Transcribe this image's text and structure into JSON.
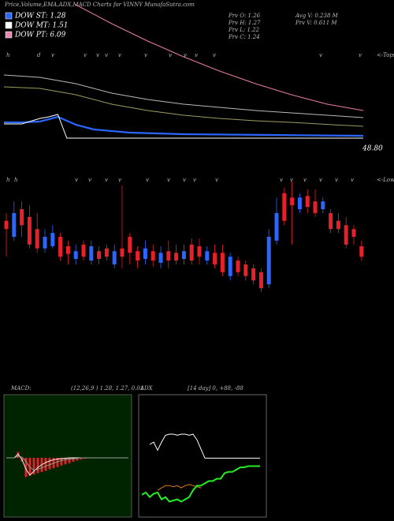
{
  "title": "Price,Volume,EMA,ADX,MACD Charts for VINNY MunafaSutra.com",
  "chart_data": [
    {
      "type": "line",
      "legend": [
        {
          "label": "DOW ST: 1.28",
          "color": "#2a66ff"
        },
        {
          "label": "DOW MT: 1.51",
          "color": "#ffffff"
        },
        {
          "label": "DOW PT: 6.09",
          "color": "#e88ab0"
        }
      ],
      "stats": [
        "Prv  O: 1.26",
        "Prv  H: 1.27",
        "Prv  L: 1.22",
        "Prv  C: 1.24",
        "Avg V: 0.238  M",
        "Prv  V: 0.611 M"
      ],
      "price_label": "48.80",
      "markers": [
        "h",
        "d",
        "v",
        "v",
        "v",
        "v",
        "v",
        "v",
        "v",
        "v",
        "v",
        "v",
        "v",
        "v",
        "<-Tops"
      ],
      "xlim": [
        0,
        40
      ],
      "ylim": [
        0,
        10
      ],
      "series": [
        {
          "color": "#e87ca8",
          "x": [
            8,
            12,
            16,
            20,
            24,
            28,
            32,
            36,
            40
          ],
          "values": [
            10.2,
            9.0,
            7.9,
            6.9,
            6.0,
            5.2,
            4.5,
            3.9,
            3.5
          ]
        },
        {
          "color": "#b8b8b8",
          "x": [
            0,
            4,
            8,
            12,
            16,
            20,
            24,
            28,
            32,
            36,
            40
          ],
          "values": [
            5.75,
            5.6,
            5.2,
            4.6,
            4.2,
            3.9,
            3.7,
            3.5,
            3.35,
            3.2,
            3.05
          ]
        },
        {
          "color": "#a09a60",
          "x": [
            0,
            4,
            8,
            12,
            16,
            20,
            24,
            28,
            32,
            36,
            40
          ],
          "values": [
            5.0,
            4.9,
            4.5,
            3.9,
            3.5,
            3.2,
            3.0,
            2.85,
            2.75,
            2.62,
            2.5
          ]
        },
        {
          "color": "#2a66ff",
          "x": [
            0,
            2,
            4,
            6,
            8,
            10,
            14,
            20,
            30,
            40
          ],
          "values": [
            2.75,
            2.75,
            2.8,
            3.1,
            2.6,
            2.3,
            2.1,
            2.0,
            1.95,
            1.9
          ]
        },
        {
          "color": "#ffffff",
          "x": [
            0,
            2,
            4,
            5,
            6,
            7,
            10,
            20,
            30,
            40
          ],
          "values": [
            2.65,
            2.65,
            3.0,
            3.1,
            3.25,
            1.75,
            1.75,
            1.75,
            1.75,
            1.75
          ]
        }
      ]
    },
    {
      "type": "candlestick",
      "markers": [
        "h",
        "h",
        "v",
        "v",
        "v",
        "v",
        "v",
        "v",
        "v",
        "v",
        "v",
        "v",
        "v",
        "v",
        "v",
        "v",
        "v",
        "<-Lows"
      ],
      "ylim": [
        0,
        20
      ],
      "up_color": "#2a66ff",
      "down_color": "#e8202a",
      "open": [
        12.9,
        10.0,
        15.0,
        13.6,
        11.4,
        7.9,
        8.3,
        10.0,
        8.3,
        6.0,
        8.6,
        5.7,
        7.4,
        7.9,
        5.0,
        7.9,
        10.0,
        7.4,
        6.0,
        7.4,
        5.3,
        7.4,
        7.1,
        6.0,
        8.6,
        8.3,
        5.7,
        7.1,
        7.1,
        2.9,
        5.7,
        5.0,
        4.3,
        3.6,
        1.4,
        9.3,
        17.9,
        17.1,
        15.0,
        17.4,
        16.4,
        15.0,
        14.3,
        12.9,
        12.1,
        11.4,
        8.3
      ],
      "high": [
        14.3,
        16.4,
        16.4,
        15.7,
        14.3,
        11.4,
        12.1,
        10.7,
        9.3,
        8.6,
        9.3,
        9.3,
        8.3,
        8.6,
        8.6,
        19.3,
        10.7,
        8.3,
        9.3,
        8.6,
        8.3,
        9.3,
        8.6,
        8.6,
        9.7,
        9.7,
        8.3,
        8.6,
        8.6,
        7.1,
        6.4,
        5.7,
        5.0,
        4.3,
        11.4,
        17.1,
        18.9,
        20.0,
        17.9,
        18.6,
        18.6,
        17.1,
        15.0,
        14.3,
        13.6,
        12.1,
        9.3
      ],
      "low": [
        6.4,
        9.3,
        10.0,
        7.9,
        7.1,
        7.1,
        7.9,
        5.7,
        5.0,
        5.0,
        5.7,
        5.0,
        5.0,
        5.7,
        4.3,
        4.3,
        5.0,
        4.3,
        5.0,
        4.6,
        4.3,
        4.3,
        5.0,
        5.0,
        5.0,
        5.0,
        5.0,
        4.3,
        2.9,
        2.1,
        2.9,
        2.1,
        1.4,
        0.0,
        0.7,
        8.6,
        12.1,
        8.6,
        14.3,
        14.3,
        13.6,
        14.3,
        10.7,
        10.7,
        7.9,
        8.6,
        5.7
      ],
      "close": [
        11.4,
        14.3,
        12.1,
        8.6,
        7.9,
        10.0,
        10.7,
        6.4,
        6.9,
        7.4,
        6.4,
        8.3,
        6.0,
        6.4,
        7.4,
        6.4,
        7.1,
        5.7,
        7.9,
        5.7,
        7.1,
        5.7,
        5.7,
        7.4,
        5.7,
        6.4,
        7.4,
        5.0,
        3.6,
        6.4,
        3.6,
        2.9,
        2.1,
        0.7,
        10.0,
        14.3,
        12.9,
        15.7,
        17.1,
        15.4,
        14.3,
        16.4,
        11.4,
        11.4,
        8.6,
        10.0,
        6.4
      ]
    },
    {
      "type": "macd",
      "title": "MACD:",
      "subtitle": "(12,26,9 ) 1.28, 1.27, 0.01",
      "ylim": [
        -1.5,
        1.5
      ],
      "hist_color": "#e8202a",
      "histogram": [
        0,
        0,
        0,
        0.15,
        -0.1,
        -0.5,
        -0.47,
        -0.44,
        -0.4,
        -0.37,
        -0.34,
        -0.3,
        -0.27,
        -0.24,
        -0.2,
        -0.17,
        -0.14,
        -0.1,
        -0.07,
        -0.04,
        -0.02,
        0,
        0,
        0,
        0,
        0,
        0,
        0,
        0,
        0,
        0,
        0
      ],
      "series": [
        {
          "color": "#ffffff",
          "values": [
            0,
            0,
            0,
            0.1,
            -0.05,
            -0.3,
            -0.45,
            -0.35,
            -0.25,
            -0.18,
            -0.12,
            -0.08,
            -0.05,
            -0.03,
            -0.02,
            -0.01,
            0,
            0,
            0,
            0,
            0,
            0,
            0,
            0,
            0,
            0,
            0,
            0,
            0,
            0,
            0,
            0
          ]
        },
        {
          "color": "#9aa09a",
          "values": [
            0,
            0,
            0,
            0.05,
            0.02,
            -0.1,
            -0.25,
            -0.32,
            -0.3,
            -0.26,
            -0.22,
            -0.18,
            -0.14,
            -0.1,
            -0.07,
            -0.05,
            -0.03,
            -0.02,
            -0.01,
            0,
            0,
            0,
            0,
            0,
            0,
            0,
            0,
            0,
            0,
            0,
            0,
            0
          ]
        }
      ]
    },
    {
      "type": "line",
      "title": "ADX",
      "subtitle": "[14 day] 0, +88, -88",
      "ylim": [
        0,
        100
      ],
      "xlim": [
        0,
        30
      ],
      "x": [
        0,
        1,
        2,
        3,
        4,
        5,
        6,
        7,
        8,
        9,
        10,
        11,
        12,
        13,
        14,
        15,
        16,
        17,
        18,
        19,
        20,
        21,
        22,
        23,
        24,
        25,
        26,
        27,
        28,
        29,
        30
      ],
      "series": [
        {
          "color": "#ffffff",
          "values": [
            null,
            null,
            60,
            62,
            55,
            62,
            68,
            69,
            69,
            68,
            69,
            69,
            68,
            69,
            64,
            56,
            48,
            48,
            48,
            48,
            48,
            48,
            48,
            48,
            48,
            48,
            48,
            48,
            48,
            48,
            48
          ]
        },
        {
          "color": "#e08020",
          "values": [
            null,
            null,
            null,
            null,
            20,
            22,
            24,
            24,
            23,
            24,
            22,
            24,
            25,
            24,
            23,
            22,
            null,
            null,
            null,
            null,
            null,
            null,
            null,
            null,
            null,
            null,
            null,
            null,
            null,
            null,
            null
          ]
        },
        {
          "color": "#22ee22",
          "values": [
            16,
            18,
            14,
            17,
            18,
            12,
            14,
            10,
            11,
            12,
            10,
            12,
            14,
            20,
            24,
            24,
            26,
            28,
            28,
            30,
            30,
            35,
            36,
            36,
            38,
            40,
            40,
            41,
            41,
            41,
            41
          ]
        }
      ]
    }
  ]
}
